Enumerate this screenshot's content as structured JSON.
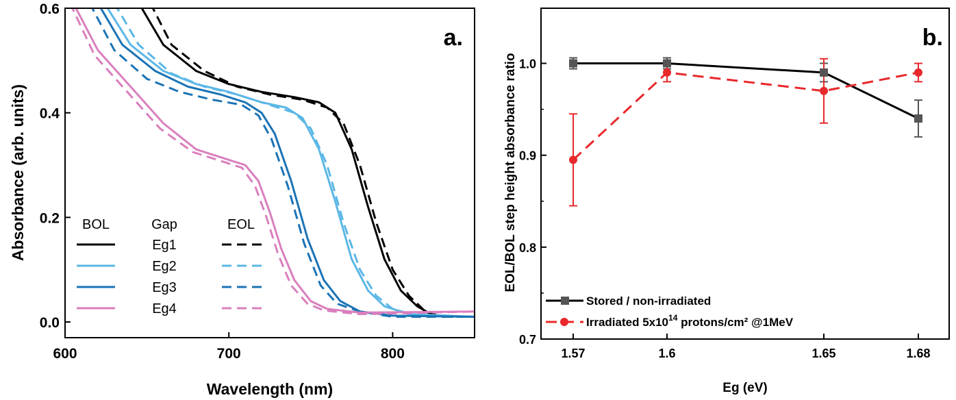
{
  "chart_data": [
    {
      "panel_label": "a.",
      "type": "line",
      "xlabel": "Wavelength (nm)",
      "ylabel": "Absorbance (arb. units)",
      "xlim": [
        600,
        850
      ],
      "ylim": [
        -0.03,
        0.6
      ],
      "x_ticks": [
        "600",
        "700",
        "800"
      ],
      "y_ticks": [
        "0.0",
        "0.2",
        "0.4",
        "0.6"
      ],
      "legend_headers": [
        "BOL",
        "Gap",
        "EOL"
      ],
      "legend_placement": "bottom-left",
      "series": [
        {
          "gap": "Eg1",
          "color": "#000000",
          "bol": [
            [
              645,
              0.61
            ],
            [
              660,
              0.53
            ],
            [
              680,
              0.48
            ],
            [
              700,
              0.455
            ],
            [
              720,
              0.44
            ],
            [
              740,
              0.43
            ],
            [
              755,
              0.42
            ],
            [
              765,
              0.4
            ],
            [
              775,
              0.33
            ],
            [
              785,
              0.22
            ],
            [
              795,
              0.12
            ],
            [
              805,
              0.06
            ],
            [
              815,
              0.03
            ],
            [
              825,
              0.012
            ],
            [
              850,
              0.01
            ]
          ],
          "eol": [
            [
              652,
              0.61
            ],
            [
              665,
              0.53
            ],
            [
              685,
              0.48
            ],
            [
              705,
              0.45
            ],
            [
              725,
              0.435
            ],
            [
              745,
              0.425
            ],
            [
              760,
              0.41
            ],
            [
              770,
              0.38
            ],
            [
              780,
              0.3
            ],
            [
              790,
              0.19
            ],
            [
              800,
              0.1
            ],
            [
              810,
              0.05
            ],
            [
              820,
              0.02
            ],
            [
              830,
              0.01
            ],
            [
              850,
              0.01
            ]
          ]
        },
        {
          "gap": "Eg2",
          "color": "#5bb7e6",
          "bol": [
            [
              624,
              0.61
            ],
            [
              640,
              0.53
            ],
            [
              660,
              0.48
            ],
            [
              680,
              0.455
            ],
            [
              700,
              0.44
            ],
            [
              720,
              0.42
            ],
            [
              735,
              0.41
            ],
            [
              745,
              0.39
            ],
            [
              755,
              0.33
            ],
            [
              765,
              0.23
            ],
            [
              775,
              0.12
            ],
            [
              785,
              0.06
            ],
            [
              795,
              0.03
            ],
            [
              810,
              0.015
            ],
            [
              850,
              0.01
            ]
          ],
          "eol": [
            [
              630,
              0.61
            ],
            [
              645,
              0.53
            ],
            [
              665,
              0.475
            ],
            [
              685,
              0.45
            ],
            [
              705,
              0.435
            ],
            [
              725,
              0.415
            ],
            [
              740,
              0.4
            ],
            [
              750,
              0.37
            ],
            [
              760,
              0.3
            ],
            [
              770,
              0.19
            ],
            [
              780,
              0.1
            ],
            [
              790,
              0.05
            ],
            [
              800,
              0.025
            ],
            [
              815,
              0.012
            ],
            [
              850,
              0.01
            ]
          ]
        },
        {
          "gap": "Eg3",
          "color": "#1a73b5",
          "bol": [
            [
              620,
              0.61
            ],
            [
              635,
              0.53
            ],
            [
              655,
              0.48
            ],
            [
              675,
              0.45
            ],
            [
              695,
              0.435
            ],
            [
              710,
              0.42
            ],
            [
              720,
              0.4
            ],
            [
              728,
              0.36
            ],
            [
              738,
              0.27
            ],
            [
              748,
              0.16
            ],
            [
              758,
              0.08
            ],
            [
              768,
              0.04
            ],
            [
              780,
              0.02
            ],
            [
              800,
              0.012
            ],
            [
              850,
              0.01
            ]
          ],
          "eol": [
            [
              615,
              0.61
            ],
            [
              630,
              0.52
            ],
            [
              650,
              0.465
            ],
            [
              670,
              0.44
            ],
            [
              690,
              0.425
            ],
            [
              708,
              0.415
            ],
            [
              718,
              0.395
            ],
            [
              726,
              0.35
            ],
            [
              736,
              0.26
            ],
            [
              746,
              0.15
            ],
            [
              756,
              0.07
            ],
            [
              766,
              0.035
            ],
            [
              780,
              0.02
            ],
            [
              800,
              0.01
            ],
            [
              850,
              0.01
            ]
          ]
        },
        {
          "gap": "Eg4",
          "color": "#d97fbd",
          "bol": [
            [
              605,
              0.61
            ],
            [
              620,
              0.52
            ],
            [
              640,
              0.45
            ],
            [
              660,
              0.38
            ],
            [
              680,
              0.33
            ],
            [
              700,
              0.31
            ],
            [
              710,
              0.3
            ],
            [
              718,
              0.27
            ],
            [
              725,
              0.21
            ],
            [
              732,
              0.14
            ],
            [
              740,
              0.08
            ],
            [
              750,
              0.04
            ],
            [
              760,
              0.025
            ],
            [
              780,
              0.018
            ],
            [
              850,
              0.02
            ]
          ],
          "eol": [
            [
              603,
              0.61
            ],
            [
              618,
              0.51
            ],
            [
              638,
              0.44
            ],
            [
              658,
              0.37
            ],
            [
              678,
              0.325
            ],
            [
              698,
              0.305
            ],
            [
              708,
              0.295
            ],
            [
              716,
              0.26
            ],
            [
              723,
              0.2
            ],
            [
              730,
              0.13
            ],
            [
              738,
              0.07
            ],
            [
              748,
              0.035
            ],
            [
              758,
              0.022
            ],
            [
              780,
              0.015
            ],
            [
              850,
              0.02
            ]
          ]
        }
      ]
    },
    {
      "panel_label": "b.",
      "type": "line",
      "xlabel": "Eg (eV)",
      "ylabel": "EOL/BOL step height absorbance ratio",
      "categories": [
        "1.57",
        "1.6",
        "1.65",
        "1.68"
      ],
      "ylim": [
        0.7,
        1.06
      ],
      "y_ticks": [
        "0.7",
        "0.8",
        "0.9",
        "1.0"
      ],
      "legend_placement": "bottom-left",
      "series": [
        {
          "name": "Stored / non-irradiated",
          "color": "#000000",
          "marker": "square",
          "values": [
            1.0,
            1.0,
            0.99,
            0.94
          ],
          "errors": [
            0.006,
            0.006,
            0.01,
            0.02
          ]
        },
        {
          "name_parts": [
            "Irradiated 5x10",
            "14",
            " protons/cm² @1MeV"
          ],
          "color": "#e8282b",
          "marker": "circle",
          "values": [
            0.895,
            0.99,
            0.97,
            0.99
          ],
          "errors": [
            0.05,
            0.01,
            0.035,
            0.01
          ]
        }
      ]
    }
  ]
}
